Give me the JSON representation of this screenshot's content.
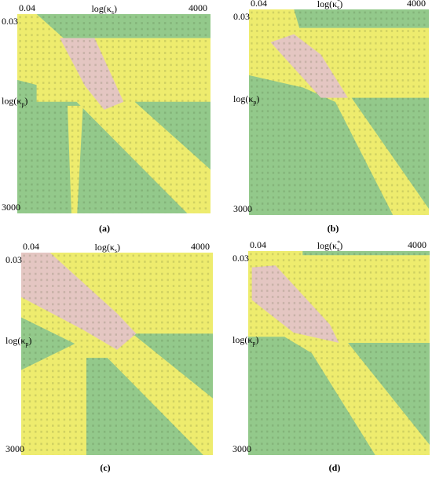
{
  "panels": [
    {
      "caption": "(a)",
      "x_axis": {
        "min": "0.04",
        "max": "4000",
        "label": {
          "prefix": "log(κ",
          "sub": "s",
          "suffix": ")"
        }
      },
      "y_axis": {
        "min": "0.03",
        "max": "3000",
        "label": {
          "prefix": "log(κ",
          "sub": "p",
          "suffix": ")"
        }
      }
    },
    {
      "caption": "(b)",
      "x_axis": {
        "min": "0.04",
        "max": "4000",
        "label": {
          "prefix": "log(κ",
          "sub": "s",
          "sup": "*",
          "suffix": ")"
        }
      },
      "y_axis": {
        "min": "0.03",
        "max": "3000",
        "label": {
          "prefix": "log(κ",
          "sub": "p",
          "suffix": ")"
        }
      }
    },
    {
      "caption": "(c)",
      "x_axis": {
        "min": "0.04",
        "max": "4000",
        "label": {
          "prefix": "log(κ",
          "sub": "s",
          "suffix": ")"
        }
      },
      "y_axis": {
        "min": "0.03",
        "max": "3000",
        "label": {
          "prefix": "log(κ",
          "sub": "p",
          "suffix": ")"
        }
      }
    },
    {
      "caption": "(d)",
      "x_axis": {
        "min": "0.04",
        "max": "4000",
        "label": {
          "prefix": "log(κ",
          "sub": "s",
          "sup": "*",
          "suffix": ")"
        }
      },
      "y_axis": {
        "min": "0.03",
        "max": "3000",
        "label": {
          "prefix": "log(κ",
          "sub": "p",
          "suffix": ")"
        }
      }
    }
  ]
}
